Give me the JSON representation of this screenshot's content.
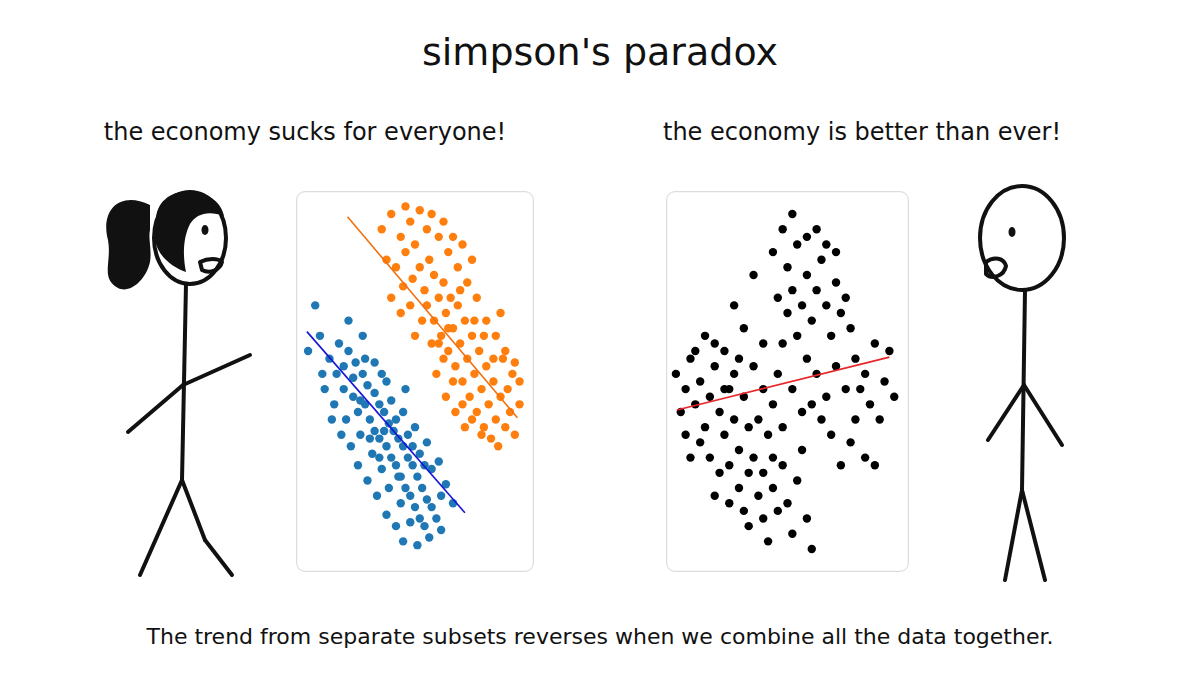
{
  "title": "simpson's paradox",
  "speech": [
    "the economy sucks for everyone!",
    "the economy is better than ever!"
  ],
  "caption": "The trend from separate subsets reverses when we combine all the data together.",
  "chart_data": [
    {
      "type": "scatter",
      "xlim": [
        0,
        100
      ],
      "ylim": [
        0,
        100
      ],
      "grid": false,
      "tick_labels": false,
      "series": [
        {
          "color": "#1f77b4",
          "x": [
            14,
            18,
            10,
            22,
            17,
            25,
            20,
            28,
            24,
            30,
            26,
            33,
            29,
            35,
            31,
            37,
            33,
            39,
            35,
            41,
            38,
            43,
            40,
            45,
            42,
            47,
            44,
            49,
            46,
            51,
            48,
            53,
            50,
            55,
            52,
            57,
            54,
            59,
            56,
            61,
            12,
            16,
            21,
            27,
            32,
            36,
            39,
            44,
            48,
            51,
            45,
            42,
            38,
            23,
            19,
            15,
            26,
            30,
            34,
            40,
            45,
            50,
            55,
            60,
            63,
            66,
            46,
            38,
            33,
            28,
            22,
            8,
            5,
            11,
            24,
            29,
            36,
            42,
            47,
            52,
            57,
            61,
            35,
            31,
            27,
            20,
            43,
            37,
            49,
            54
          ],
          "values": [
            56,
            60,
            62,
            58,
            52,
            55,
            48,
            52,
            46,
            49,
            42,
            47,
            44,
            44,
            40,
            42,
            37,
            39,
            35,
            37,
            33,
            35,
            30,
            33,
            28,
            30,
            25,
            28,
            22,
            25,
            20,
            22,
            17,
            19,
            14,
            17,
            12,
            14,
            9,
            11,
            48,
            44,
            40,
            36,
            31,
            27,
            22,
            18,
            13,
            7,
            8,
            12,
            15,
            33,
            36,
            40,
            28,
            24,
            20,
            45,
            42,
            38,
            34,
            29,
            23,
            18,
            48,
            50,
            55,
            62,
            66,
            70,
            58,
            52,
            51,
            56,
            52,
            40,
            36,
            31,
            27,
            20,
            30,
            35,
            45,
            54,
            25,
            37,
            33,
            28
          ]
        },
        {
          "color": "#ff7f0e",
          "x": [
            36,
            40,
            44,
            38,
            42,
            46,
            48,
            50,
            52,
            45,
            49,
            54,
            56,
            58,
            55,
            60,
            62,
            58,
            63,
            65,
            61,
            66,
            68,
            64,
            69,
            71,
            67,
            72,
            74,
            70,
            75,
            77,
            73,
            78,
            80,
            76,
            81,
            83,
            79,
            84,
            86,
            82,
            88,
            90,
            85,
            92,
            94,
            89,
            87,
            91,
            52,
            55,
            60,
            64,
            68,
            72,
            76,
            80,
            84,
            88,
            92,
            94,
            48,
            53,
            57,
            62,
            66,
            70,
            74,
            78,
            40,
            44,
            50,
            59,
            63,
            67,
            71,
            62,
            66,
            70,
            57,
            46,
            75,
            79,
            83,
            86,
            74,
            69,
            64,
            60
          ],
          "values": [
            90,
            94,
            88,
            82,
            80,
            84,
            92,
            86,
            80,
            75,
            77,
            74,
            82,
            78,
            70,
            72,
            76,
            66,
            68,
            72,
            62,
            64,
            70,
            58,
            60,
            66,
            54,
            56,
            62,
            50,
            52,
            58,
            46,
            48,
            54,
            42,
            44,
            50,
            38,
            40,
            46,
            35,
            38,
            42,
            33,
            36,
            44,
            48,
            56,
            52,
            95,
            90,
            88,
            84,
            80,
            76,
            72,
            66,
            62,
            58,
            55,
            50,
            70,
            66,
            60,
            56,
            50,
            44,
            40,
            36,
            72,
            68,
            62,
            52,
            46,
            42,
            38,
            92,
            88,
            86,
            94,
            96,
            66,
            62,
            56,
            68,
            82,
            74,
            64,
            60
          ]
        },
        {
          "type": "line",
          "color": "#1414d8",
          "x": [
            4.5,
            71
          ],
          "values": [
            63.1,
            15.5
          ]
        },
        {
          "type": "line",
          "color": "#f07010",
          "x": [
            21.6,
            93.1
          ],
          "values": [
            93.3,
            40.5
          ]
        }
      ]
    },
    {
      "type": "scatter",
      "xlim": [
        0,
        100
      ],
      "ylim": [
        0,
        100
      ],
      "grid": false,
      "tick_labels": false,
      "series": [
        {
          "color": "#000000",
          "x": [
            4,
            6,
            8,
            10,
            12,
            14,
            16,
            18,
            20,
            22,
            24,
            26,
            28,
            30,
            14,
            10,
            18,
            22,
            26,
            30,
            34,
            20,
            16,
            24,
            28,
            32,
            34,
            36,
            38,
            40,
            42,
            34,
            44,
            46,
            48,
            50,
            52,
            54,
            56,
            58,
            60,
            38,
            40,
            36,
            42,
            44,
            46,
            48,
            50,
            52,
            54,
            56,
            58,
            60,
            62,
            64,
            66,
            68,
            70,
            72,
            50,
            54,
            58,
            46,
            44,
            48,
            52,
            62,
            66,
            70,
            74,
            76,
            78,
            80,
            82,
            84,
            86,
            88,
            90,
            92,
            94,
            78,
            74,
            70,
            66,
            62,
            58,
            82,
            76,
            72,
            68,
            64,
            60,
            86,
            28,
            32,
            36,
            12,
            8,
            24,
            30,
            40,
            26,
            32,
            20,
            56,
            52,
            48,
            44,
            40
          ],
          "values": [
            52,
            42,
            48,
            56,
            44,
            50,
            38,
            46,
            54,
            42,
            36,
            48,
            40,
            32,
            34,
            30,
            30,
            26,
            28,
            22,
            26,
            60,
            62,
            58,
            52,
            46,
            38,
            30,
            20,
            14,
            8,
            12,
            22,
            16,
            28,
            18,
            10,
            24,
            32,
            14,
            6,
            40,
            48,
            54,
            36,
            44,
            52,
            60,
            68,
            74,
            62,
            70,
            78,
            66,
            74,
            82,
            70,
            62,
            76,
            68,
            80,
            86,
            88,
            72,
            84,
            90,
            94,
            90,
            86,
            84,
            72,
            64,
            56,
            48,
            52,
            44,
            60,
            40,
            50,
            58,
            46,
            40,
            48,
            54,
            46,
            52,
            56,
            30,
            34,
            28,
            36,
            40,
            44,
            28,
            70,
            64,
            78,
            58,
            36,
            48,
            56,
            60,
            18,
            16,
            20,
            42,
            48,
            38,
            30,
            26
          ]
        },
        {
          "type": "line",
          "color": "#e8262a",
          "x": [
            4.4,
            92
          ],
          "values": [
            42.5,
            56.4
          ]
        }
      ]
    }
  ]
}
